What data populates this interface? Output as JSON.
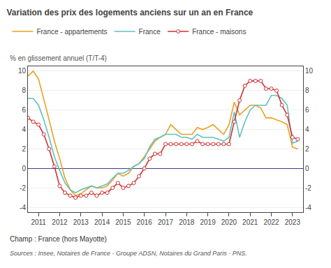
{
  "chart_data": {
    "type": "line",
    "title": "Variation des prix des logements anciens sur un an en France",
    "ylabel": "% en glissement annuel (T/T-4)",
    "annotations": [
      "Champ : France (hors Mayotte)",
      "Sources : Insee, Notaires de France - Groupe ADSN, Notaires du Grand Paris - PNS."
    ],
    "x": [
      2010.5,
      2010.75,
      2011.0,
      2011.25,
      2011.5,
      2011.75,
      2012.0,
      2012.25,
      2012.5,
      2012.75,
      2013.0,
      2013.25,
      2013.5,
      2013.75,
      2014.0,
      2014.25,
      2014.5,
      2014.75,
      2015.0,
      2015.25,
      2015.5,
      2015.75,
      2016.0,
      2016.25,
      2016.5,
      2016.75,
      2017.0,
      2017.25,
      2017.5,
      2017.75,
      2018.0,
      2018.25,
      2018.5,
      2018.75,
      2019.0,
      2019.25,
      2019.5,
      2019.75,
      2020.0,
      2020.25,
      2020.5,
      2020.75,
      2021.0,
      2021.25,
      2021.5,
      2021.75,
      2022.0,
      2022.25,
      2022.5,
      2022.75,
      2023.0,
      2023.25
    ],
    "series": [
      {
        "name": "France - appartements",
        "color": "#e8a020",
        "values": [
          9.5,
          10.0,
          9.2,
          7.2,
          5.0,
          2.8,
          1.0,
          -1.0,
          -2.2,
          -2.8,
          -2.6,
          -2.2,
          -1.8,
          -2.0,
          -2.0,
          -1.8,
          -1.2,
          -0.5,
          -0.8,
          -0.5,
          0.2,
          0.5,
          1.2,
          2.0,
          2.8,
          3.2,
          3.5,
          4.5,
          4.0,
          3.5,
          3.5,
          3.5,
          4.2,
          4.0,
          4.2,
          4.5,
          4.0,
          3.5,
          4.5,
          6.8,
          5.5,
          6.0,
          6.5,
          6.5,
          6.2,
          5.2,
          5.2,
          5.0,
          4.8,
          4.5,
          2.2,
          2.0
        ]
      },
      {
        "name": "France",
        "color": "#60c0c0",
        "values": [
          7.2,
          7.2,
          6.5,
          5.0,
          3.2,
          1.2,
          -0.2,
          -1.5,
          -2.2,
          -2.5,
          -2.2,
          -2.0,
          -1.8,
          -2.0,
          -1.8,
          -1.6,
          -1.0,
          -0.5,
          -0.5,
          -0.2,
          0.2,
          0.5,
          1.0,
          2.2,
          3.0,
          3.2,
          3.5,
          3.5,
          3.5,
          3.2,
          3.2,
          3.0,
          3.5,
          3.2,
          3.2,
          3.2,
          3.0,
          2.8,
          3.2,
          5.8,
          3.2,
          4.8,
          6.0,
          6.5,
          6.5,
          6.5,
          7.5,
          7.5,
          7.2,
          6.5,
          2.6,
          2.8
        ]
      },
      {
        "name": "France - maisons",
        "color": "#d03030",
        "marker": "circle",
        "values": [
          5.2,
          4.8,
          4.5,
          3.5,
          2.0,
          0.2,
          -1.8,
          -2.5,
          -2.8,
          -3.0,
          -2.8,
          -2.8,
          -2.5,
          -2.8,
          -2.5,
          -2.5,
          -2.0,
          -1.5,
          -2.0,
          -1.8,
          -1.5,
          -0.8,
          0.0,
          1.0,
          1.5,
          1.5,
          2.5,
          2.5,
          2.5,
          2.5,
          2.5,
          2.5,
          2.8,
          2.5,
          2.5,
          2.5,
          2.5,
          2.5,
          2.5,
          4.8,
          7.0,
          8.5,
          9.0,
          9.0,
          9.0,
          8.2,
          8.2,
          8.0,
          6.5,
          5.5,
          3.2,
          3.0
        ]
      }
    ],
    "xlim": [
      2010.5,
      2023.5
    ],
    "xticks": [
      2011,
      2012,
      2013,
      2014,
      2015,
      2016,
      2017,
      2018,
      2019,
      2020,
      2021,
      2022,
      2023
    ],
    "ylim": [
      -4.5,
      10.5
    ],
    "yticks": [
      -4,
      -2,
      0,
      2,
      4,
      6,
      8,
      10
    ],
    "y2lim": [
      -4.5,
      10.5
    ],
    "y2ticks": [
      -4,
      -2,
      0,
      2,
      4,
      6,
      8,
      10
    ],
    "grid": "y",
    "legend": "top"
  }
}
